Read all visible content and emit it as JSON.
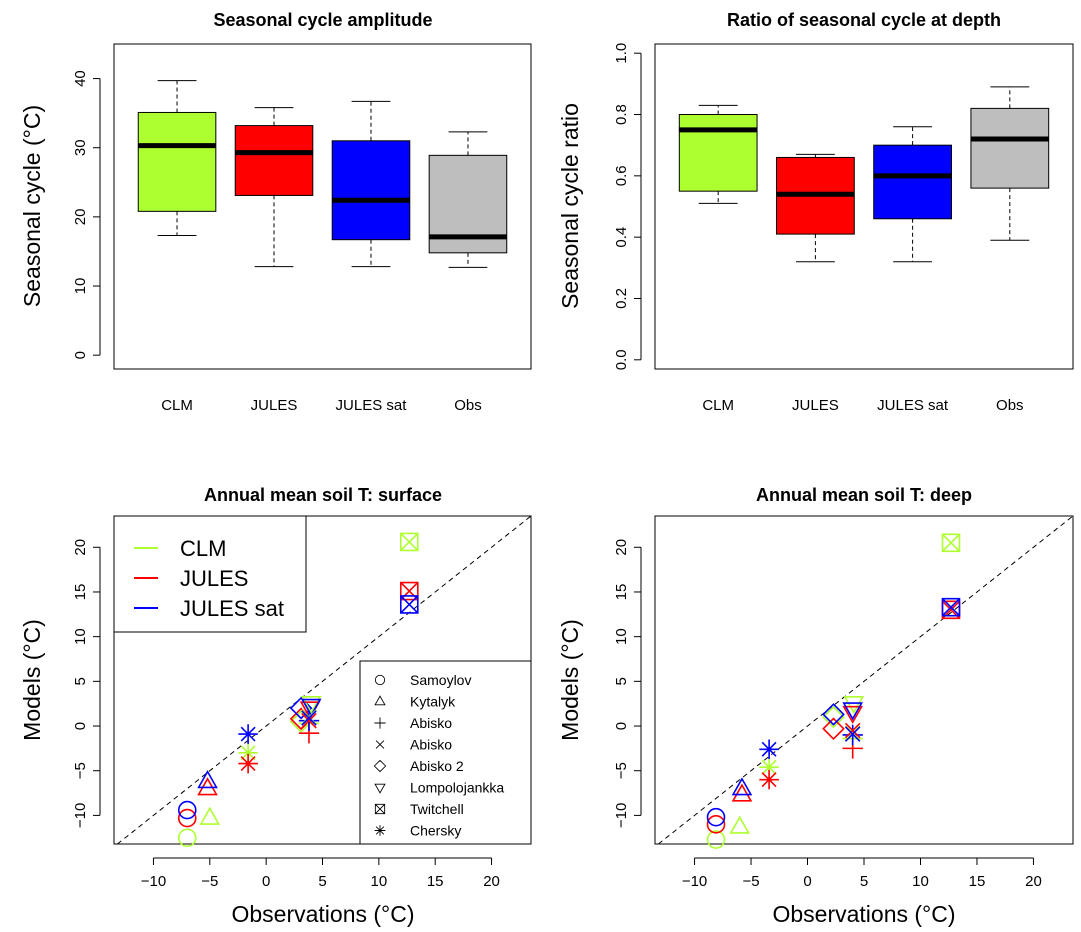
{
  "colors": {
    "CLM": "#adff2f",
    "JULES": "#ff0000",
    "JULES sat": "#0000ff",
    "Obs": "#bebebe"
  },
  "chart_data": [
    {
      "type": "boxplot",
      "title": "Seasonal cycle amplitude",
      "ylabel": "Seasonal cycle (°C)",
      "ylim": [
        -2,
        45
      ],
      "yticks": [
        "0",
        "10",
        "20",
        "30",
        "40"
      ],
      "categories": [
        "CLM",
        "JULES",
        "JULES sat",
        "Obs"
      ],
      "boxes": [
        {
          "min": 17.3,
          "q1": 20.8,
          "median": 30.3,
          "q3": 35.1,
          "max": 39.7
        },
        {
          "min": 12.8,
          "q1": 23.1,
          "median": 29.3,
          "q3": 33.2,
          "max": 35.8
        },
        {
          "min": 12.8,
          "q1": 16.7,
          "median": 22.4,
          "q3": 31.0,
          "max": 36.7
        },
        {
          "min": 12.7,
          "q1": 14.8,
          "median": 17.1,
          "q3": 28.9,
          "max": 32.3
        }
      ]
    },
    {
      "type": "boxplot",
      "title": "Ratio of seasonal cycle at depth",
      "ylabel": "Seasonal cycle ratio",
      "ylim": [
        -0.03,
        1.03
      ],
      "yticks": [
        "0.0",
        "0.2",
        "0.4",
        "0.6",
        "0.8",
        "1.0"
      ],
      "categories": [
        "CLM",
        "JULES",
        "JULES sat",
        "Obs"
      ],
      "boxes": [
        {
          "min": 0.51,
          "q1": 0.55,
          "median": 0.75,
          "q3": 0.8,
          "max": 0.83
        },
        {
          "min": 0.32,
          "q1": 0.41,
          "median": 0.54,
          "q3": 0.66,
          "max": 0.67
        },
        {
          "min": 0.32,
          "q1": 0.46,
          "median": 0.6,
          "q3": 0.7,
          "max": 0.76
        },
        {
          "min": 0.39,
          "q1": 0.56,
          "median": 0.72,
          "q3": 0.82,
          "max": 0.89
        }
      ]
    },
    {
      "type": "scatter",
      "title": "Annual mean soil T: surface",
      "xlabel": "Observations (°C)",
      "ylabel": "Models (°C)",
      "xlim": [
        -13.5,
        23.5
      ],
      "ylim": [
        -13.2,
        23.5
      ],
      "xticks": [
        "-10",
        "-5",
        "0",
        "5",
        "10",
        "15",
        "20"
      ],
      "yticks": [
        "-10",
        "-5",
        "0",
        "5",
        "10",
        "15",
        "20"
      ],
      "one_to_one_line": true,
      "legend_models": [
        "CLM",
        "JULES",
        "JULES sat"
      ],
      "legend_sites": [
        {
          "name": "Samoylov",
          "symbol": "circle"
        },
        {
          "name": "Kytalyk",
          "symbol": "triangle"
        },
        {
          "name": "Abisko",
          "symbol": "plus"
        },
        {
          "name": "Abisko",
          "symbol": "cross"
        },
        {
          "name": "Abisko 2",
          "symbol": "diamond"
        },
        {
          "name": "Lompolojankka",
          "symbol": "triangle-down"
        },
        {
          "name": "Twitchell",
          "symbol": "boxcross"
        },
        {
          "name": "Chersky",
          "symbol": "asterisk"
        }
      ],
      "points": [
        {
          "model": "CLM",
          "symbol": "circle",
          "x": -7.0,
          "y": -12.5
        },
        {
          "model": "JULES",
          "symbol": "circle",
          "x": -7.0,
          "y": -10.3
        },
        {
          "model": "JULES sat",
          "symbol": "circle",
          "x": -7.0,
          "y": -9.4
        },
        {
          "model": "CLM",
          "symbol": "triangle",
          "x": -5.0,
          "y": -10.3
        },
        {
          "model": "JULES",
          "symbol": "triangle",
          "x": -5.2,
          "y": -7.0
        },
        {
          "model": "JULES sat",
          "symbol": "triangle",
          "x": -5.2,
          "y": -6.2
        },
        {
          "model": "CLM",
          "symbol": "asterisk",
          "x": -1.6,
          "y": -3.0
        },
        {
          "model": "JULES",
          "symbol": "asterisk",
          "x": -1.6,
          "y": -4.2
        },
        {
          "model": "JULES sat",
          "symbol": "asterisk",
          "x": -1.6,
          "y": -0.9
        },
        {
          "model": "CLM",
          "symbol": "diamond",
          "x": 3.1,
          "y": 0.5
        },
        {
          "model": "JULES",
          "symbol": "diamond",
          "x": 3.1,
          "y": 0.8
        },
        {
          "model": "JULES sat",
          "symbol": "diamond",
          "x": 3.1,
          "y": 2.0
        },
        {
          "model": "CLM",
          "symbol": "triangle-down",
          "x": 4.0,
          "y": 2.6
        },
        {
          "model": "JULES",
          "symbol": "triangle-down",
          "x": 3.9,
          "y": 2.0
        },
        {
          "model": "JULES sat",
          "symbol": "triangle-down",
          "x": 4.0,
          "y": 2.3
        },
        {
          "model": "CLM",
          "symbol": "plus",
          "x": 3.8,
          "y": 0.3
        },
        {
          "model": "JULES",
          "symbol": "plus",
          "x": 3.8,
          "y": -0.8
        },
        {
          "model": "JULES sat",
          "symbol": "plus",
          "x": 3.8,
          "y": 0.6
        },
        {
          "model": "CLM",
          "symbol": "cross",
          "x": 3.8,
          "y": 1.0
        },
        {
          "model": "JULES",
          "symbol": "cross",
          "x": 3.8,
          "y": 0.6
        },
        {
          "model": "JULES sat",
          "symbol": "cross",
          "x": 3.8,
          "y": 0.9
        },
        {
          "model": "CLM",
          "symbol": "boxcross",
          "x": 12.7,
          "y": 20.6
        },
        {
          "model": "JULES",
          "symbol": "boxcross",
          "x": 12.7,
          "y": 15.1
        },
        {
          "model": "JULES sat",
          "symbol": "boxcross",
          "x": 12.7,
          "y": 13.6
        }
      ]
    },
    {
      "type": "scatter",
      "title": "Annual mean soil T: deep",
      "xlabel": "Observations (°C)",
      "ylabel": "Models (°C)",
      "xlim": [
        -13.5,
        23.5
      ],
      "ylim": [
        -13.2,
        23.5
      ],
      "xticks": [
        "-10",
        "-5",
        "0",
        "5",
        "10",
        "15",
        "20"
      ],
      "yticks": [
        "-10",
        "-5",
        "0",
        "5",
        "10",
        "15",
        "20"
      ],
      "one_to_one_line": true,
      "points": [
        {
          "model": "CLM",
          "symbol": "circle",
          "x": -8.1,
          "y": -12.7
        },
        {
          "model": "JULES",
          "symbol": "circle",
          "x": -8.1,
          "y": -11.0
        },
        {
          "model": "JULES sat",
          "symbol": "circle",
          "x": -8.1,
          "y": -10.2
        },
        {
          "model": "CLM",
          "symbol": "triangle",
          "x": -6.0,
          "y": -11.3
        },
        {
          "model": "JULES",
          "symbol": "triangle",
          "x": -5.8,
          "y": -7.7
        },
        {
          "model": "JULES sat",
          "symbol": "triangle",
          "x": -5.8,
          "y": -7.0
        },
        {
          "model": "CLM",
          "symbol": "asterisk",
          "x": -3.4,
          "y": -4.6
        },
        {
          "model": "JULES",
          "symbol": "asterisk",
          "x": -3.4,
          "y": -6.0
        },
        {
          "model": "JULES sat",
          "symbol": "asterisk",
          "x": -3.4,
          "y": -2.6
        },
        {
          "model": "CLM",
          "symbol": "diamond",
          "x": 2.3,
          "y": 1.0
        },
        {
          "model": "JULES",
          "symbol": "diamond",
          "x": 2.3,
          "y": -0.3
        },
        {
          "model": "JULES sat",
          "symbol": "diamond",
          "x": 2.3,
          "y": 1.3
        },
        {
          "model": "CLM",
          "symbol": "triangle-down",
          "x": 4.1,
          "y": 2.6
        },
        {
          "model": "JULES",
          "symbol": "triangle-down",
          "x": 4.0,
          "y": 1.5
        },
        {
          "model": "JULES sat",
          "symbol": "triangle-down",
          "x": 4.0,
          "y": 1.9
        },
        {
          "model": "CLM",
          "symbol": "plus",
          "x": 4.0,
          "y": -1.4
        },
        {
          "model": "JULES",
          "symbol": "plus",
          "x": 4.0,
          "y": -2.5
        },
        {
          "model": "JULES sat",
          "symbol": "plus",
          "x": 4.0,
          "y": -1.0
        },
        {
          "model": "CLM",
          "symbol": "cross",
          "x": 4.0,
          "y": -0.8
        },
        {
          "model": "JULES",
          "symbol": "cross",
          "x": 4.0,
          "y": -0.5
        },
        {
          "model": "JULES sat",
          "symbol": "cross",
          "x": 4.0,
          "y": -0.9
        },
        {
          "model": "CLM",
          "symbol": "boxcross",
          "x": 12.7,
          "y": 20.5
        },
        {
          "model": "JULES",
          "symbol": "boxcross",
          "x": 12.7,
          "y": 13.0
        },
        {
          "model": "JULES sat",
          "symbol": "boxcross",
          "x": 12.7,
          "y": 13.3
        }
      ]
    }
  ]
}
